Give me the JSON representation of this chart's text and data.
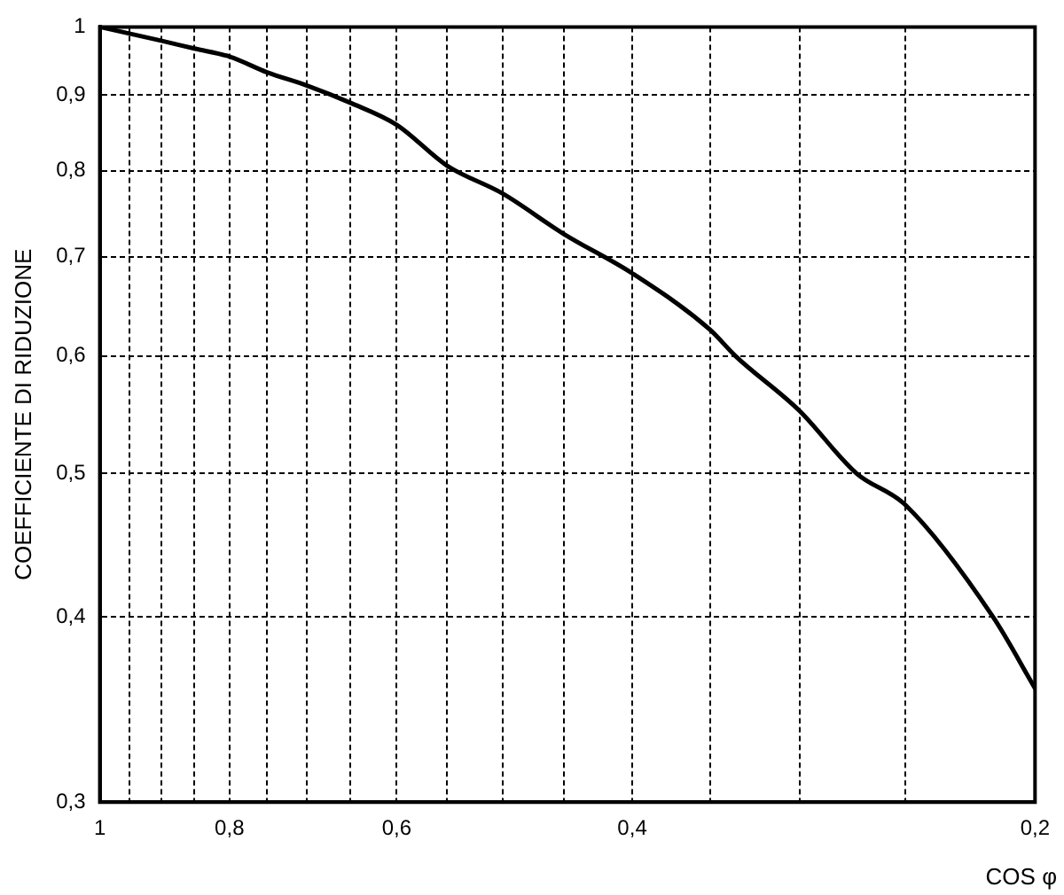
{
  "chart_data": {
    "type": "line",
    "xlabel": "COS φ",
    "ylabel": "COEFFICIENTE DI RIDUZIONE",
    "log": "xy",
    "grid": true,
    "marker": "none",
    "line_style": "solid",
    "x": [
      1,
      0.9,
      0.85,
      0.8,
      0.75,
      0.7,
      0.65,
      0.6,
      0.55,
      0.5,
      0.45,
      0.4,
      0.35,
      0.335,
      0.3,
      0.272,
      0.25,
      0.215,
      0.2
    ],
    "series": [
      {
        "color": "#000000",
        "values": [
          1,
          0.979,
          0.967,
          0.955,
          0.932,
          0.913,
          0.889,
          0.859,
          0.806,
          0.772,
          0.725,
          0.682,
          0.625,
          0.6,
          0.551,
          0.5,
          0.476,
          0.4,
          0.358
        ]
      }
    ],
    "xlim": [
      1,
      0.2
    ],
    "ylim": [
      0.3,
      1
    ],
    "xticks": [
      1,
      {
        "value": 0.95,
        "label": null
      },
      {
        "value": 0.9,
        "label": null
      },
      {
        "value": 0.85,
        "label": null
      },
      {
        "value": 0.8,
        "label": "0,8"
      },
      {
        "value": 0.75,
        "label": null
      },
      {
        "value": 0.7,
        "label": null
      },
      {
        "value": 0.65,
        "label": null
      },
      {
        "value": 0.6,
        "label": "0,6"
      },
      {
        "value": 0.55,
        "label": null
      },
      {
        "value": 0.5,
        "label": null
      },
      {
        "value": 0.45,
        "label": null
      },
      {
        "value": 0.4,
        "label": "0,4"
      },
      {
        "value": 0.35,
        "label": null
      },
      {
        "value": 0.3,
        "label": null
      },
      {
        "value": 0.25,
        "label": null
      },
      {
        "value": 0.2,
        "label": "0,2"
      }
    ],
    "yticks": [
      {
        "value": 0.3,
        "label": "0,3"
      },
      {
        "value": 0.4,
        "label": "0,4"
      },
      {
        "value": 0.5,
        "label": "0,5"
      },
      {
        "value": 0.6,
        "label": "0,6"
      },
      {
        "value": 0.7,
        "label": "0,7"
      },
      {
        "value": 0.8,
        "label": "0,8"
      },
      {
        "value": 0.9,
        "label": "0,9"
      },
      1
    ]
  }
}
